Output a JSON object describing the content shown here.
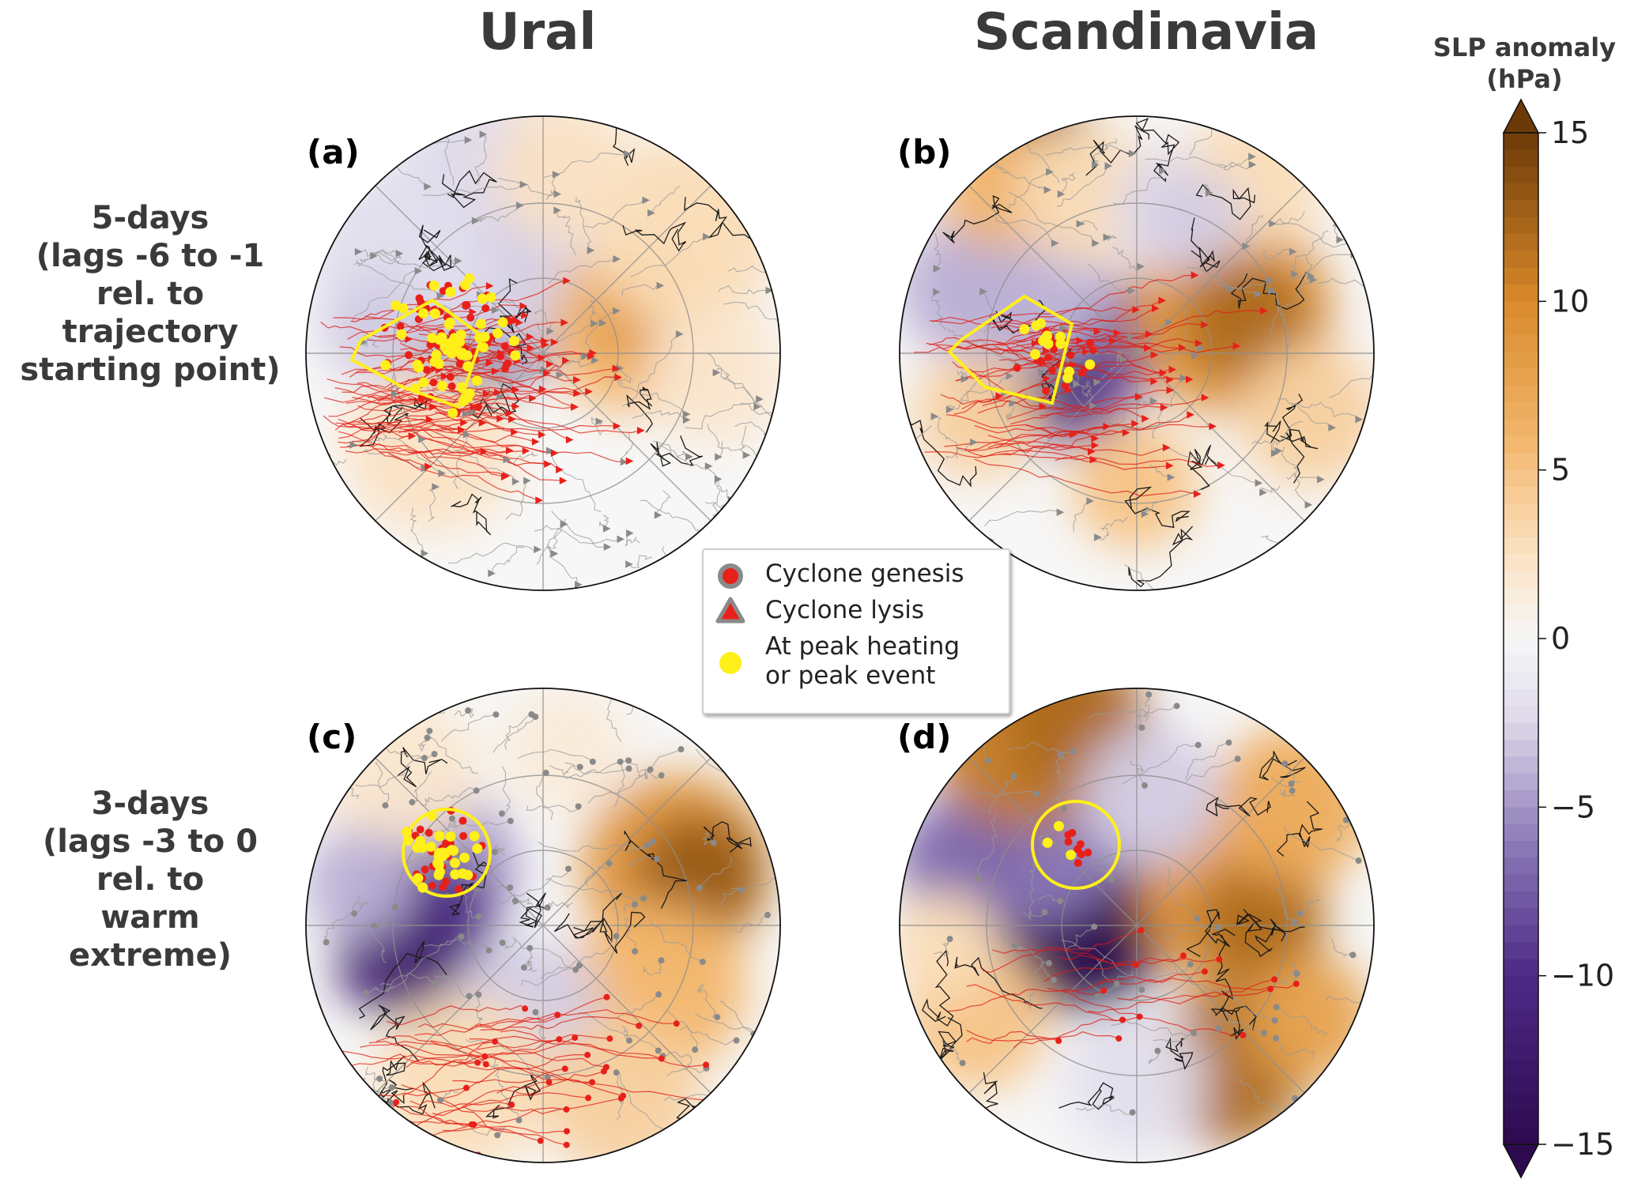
{
  "columns": {
    "left": "Ural",
    "right": "Scandinavia"
  },
  "rows": {
    "top": [
      "5-days",
      "(lags -6 to -1",
      "rel. to",
      "trajectory",
      "starting point)"
    ],
    "bottom": [
      "3-days",
      "(lags -3 to 0",
      "rel. to",
      "warm",
      "extreme)"
    ]
  },
  "panels": [
    {
      "letter": "(a)",
      "column": "Ural",
      "window": "5-days",
      "region_outline": "polygon",
      "pattern": "a"
    },
    {
      "letter": "(b)",
      "column": "Scandinavia",
      "window": "5-days",
      "region_outline": "polygon",
      "pattern": "b"
    },
    {
      "letter": "(c)",
      "column": "Ural",
      "window": "3-days",
      "region_outline": "circle",
      "pattern": "c"
    },
    {
      "letter": "(d)",
      "column": "Scandinavia",
      "window": "3-days",
      "region_outline": "circle",
      "pattern": "d"
    }
  ],
  "legend": {
    "items": [
      {
        "symbol": "circle-icon",
        "label": "Cyclone genesis"
      },
      {
        "symbol": "triangle-icon",
        "label": "Cyclone lysis"
      },
      {
        "symbol": "yellow-dot-icon",
        "label_lines": [
          "At peak heating",
          "or peak event"
        ]
      }
    ]
  },
  "colorbar": {
    "title_lines": [
      "SLP anomaly",
      "(hPa)"
    ],
    "min": -15,
    "max": 15,
    "ticks": [
      {
        "value": 15,
        "label": "15"
      },
      {
        "value": 10,
        "label": "10"
      },
      {
        "value": 5,
        "label": "5"
      },
      {
        "value": 0,
        "label": "0"
      },
      {
        "value": -5,
        "label": "−5"
      },
      {
        "value": -10,
        "label": "−10"
      },
      {
        "value": -15,
        "label": "−15"
      }
    ],
    "extend": "both"
  },
  "colors": {
    "positive_max": "#6b3a08",
    "positive_mid": "#d98a2b",
    "positive_low": "#fbe2c3",
    "neutral": "#f7f7f7",
    "negative_low": "#ddd8ea",
    "negative_mid": "#8d7bb8",
    "negative_max": "#2d0a4e",
    "genesis_red": "#e8201a",
    "genesis_grey": "#8a8a8a",
    "peak_yellow": "#ffef1a",
    "track_red": "#e01a12",
    "track_grey": "#9a9a9a"
  }
}
